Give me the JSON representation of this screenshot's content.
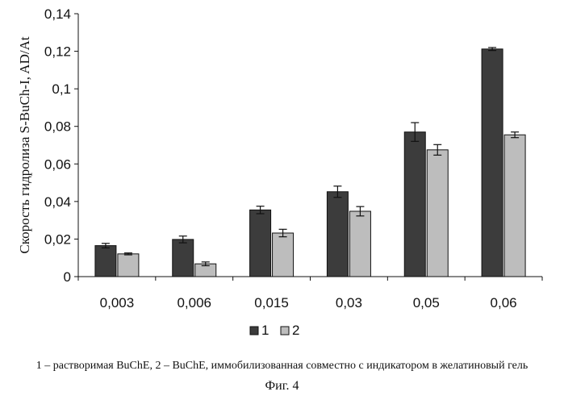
{
  "chart_data": {
    "type": "bar",
    "title": "",
    "xlabel": "",
    "ylabel": "Скорость гидролиза S-BuCh-I, AD/At",
    "categories": [
      "0,003",
      "0,006",
      "0,015",
      "0,03",
      "0,05",
      "0,06"
    ],
    "series": [
      {
        "name": "1",
        "values": [
          0.0165,
          0.0198,
          0.0355,
          0.0452,
          0.077,
          0.1212
        ],
        "errors": [
          0.0012,
          0.0018,
          0.002,
          0.003,
          0.005,
          0.0008
        ],
        "color": "#3c3c3c"
      },
      {
        "name": "2",
        "values": [
          0.0121,
          0.0068,
          0.0232,
          0.0348,
          0.0675,
          0.0755
        ],
        "errors": [
          0.0005,
          0.001,
          0.002,
          0.0025,
          0.0028,
          0.0015
        ],
        "color": "#bdbdbd"
      }
    ],
    "ylim": [
      0,
      0.14
    ],
    "yticks": [
      0,
      0.02,
      0.04,
      0.06,
      0.08,
      0.1,
      0.12,
      0.14
    ],
    "ytick_labels": [
      "0",
      "0,02",
      "0,04",
      "0,06",
      "0,08",
      "0,1",
      "0,12",
      "0,14"
    ],
    "grid": false,
    "legend_position": "bottom"
  },
  "caption": "1 – растворимая BuChE, 2 – BuChE, иммобилизованная совместно с индикатором в желатиновый гель",
  "figure_label": "Фиг. 4"
}
